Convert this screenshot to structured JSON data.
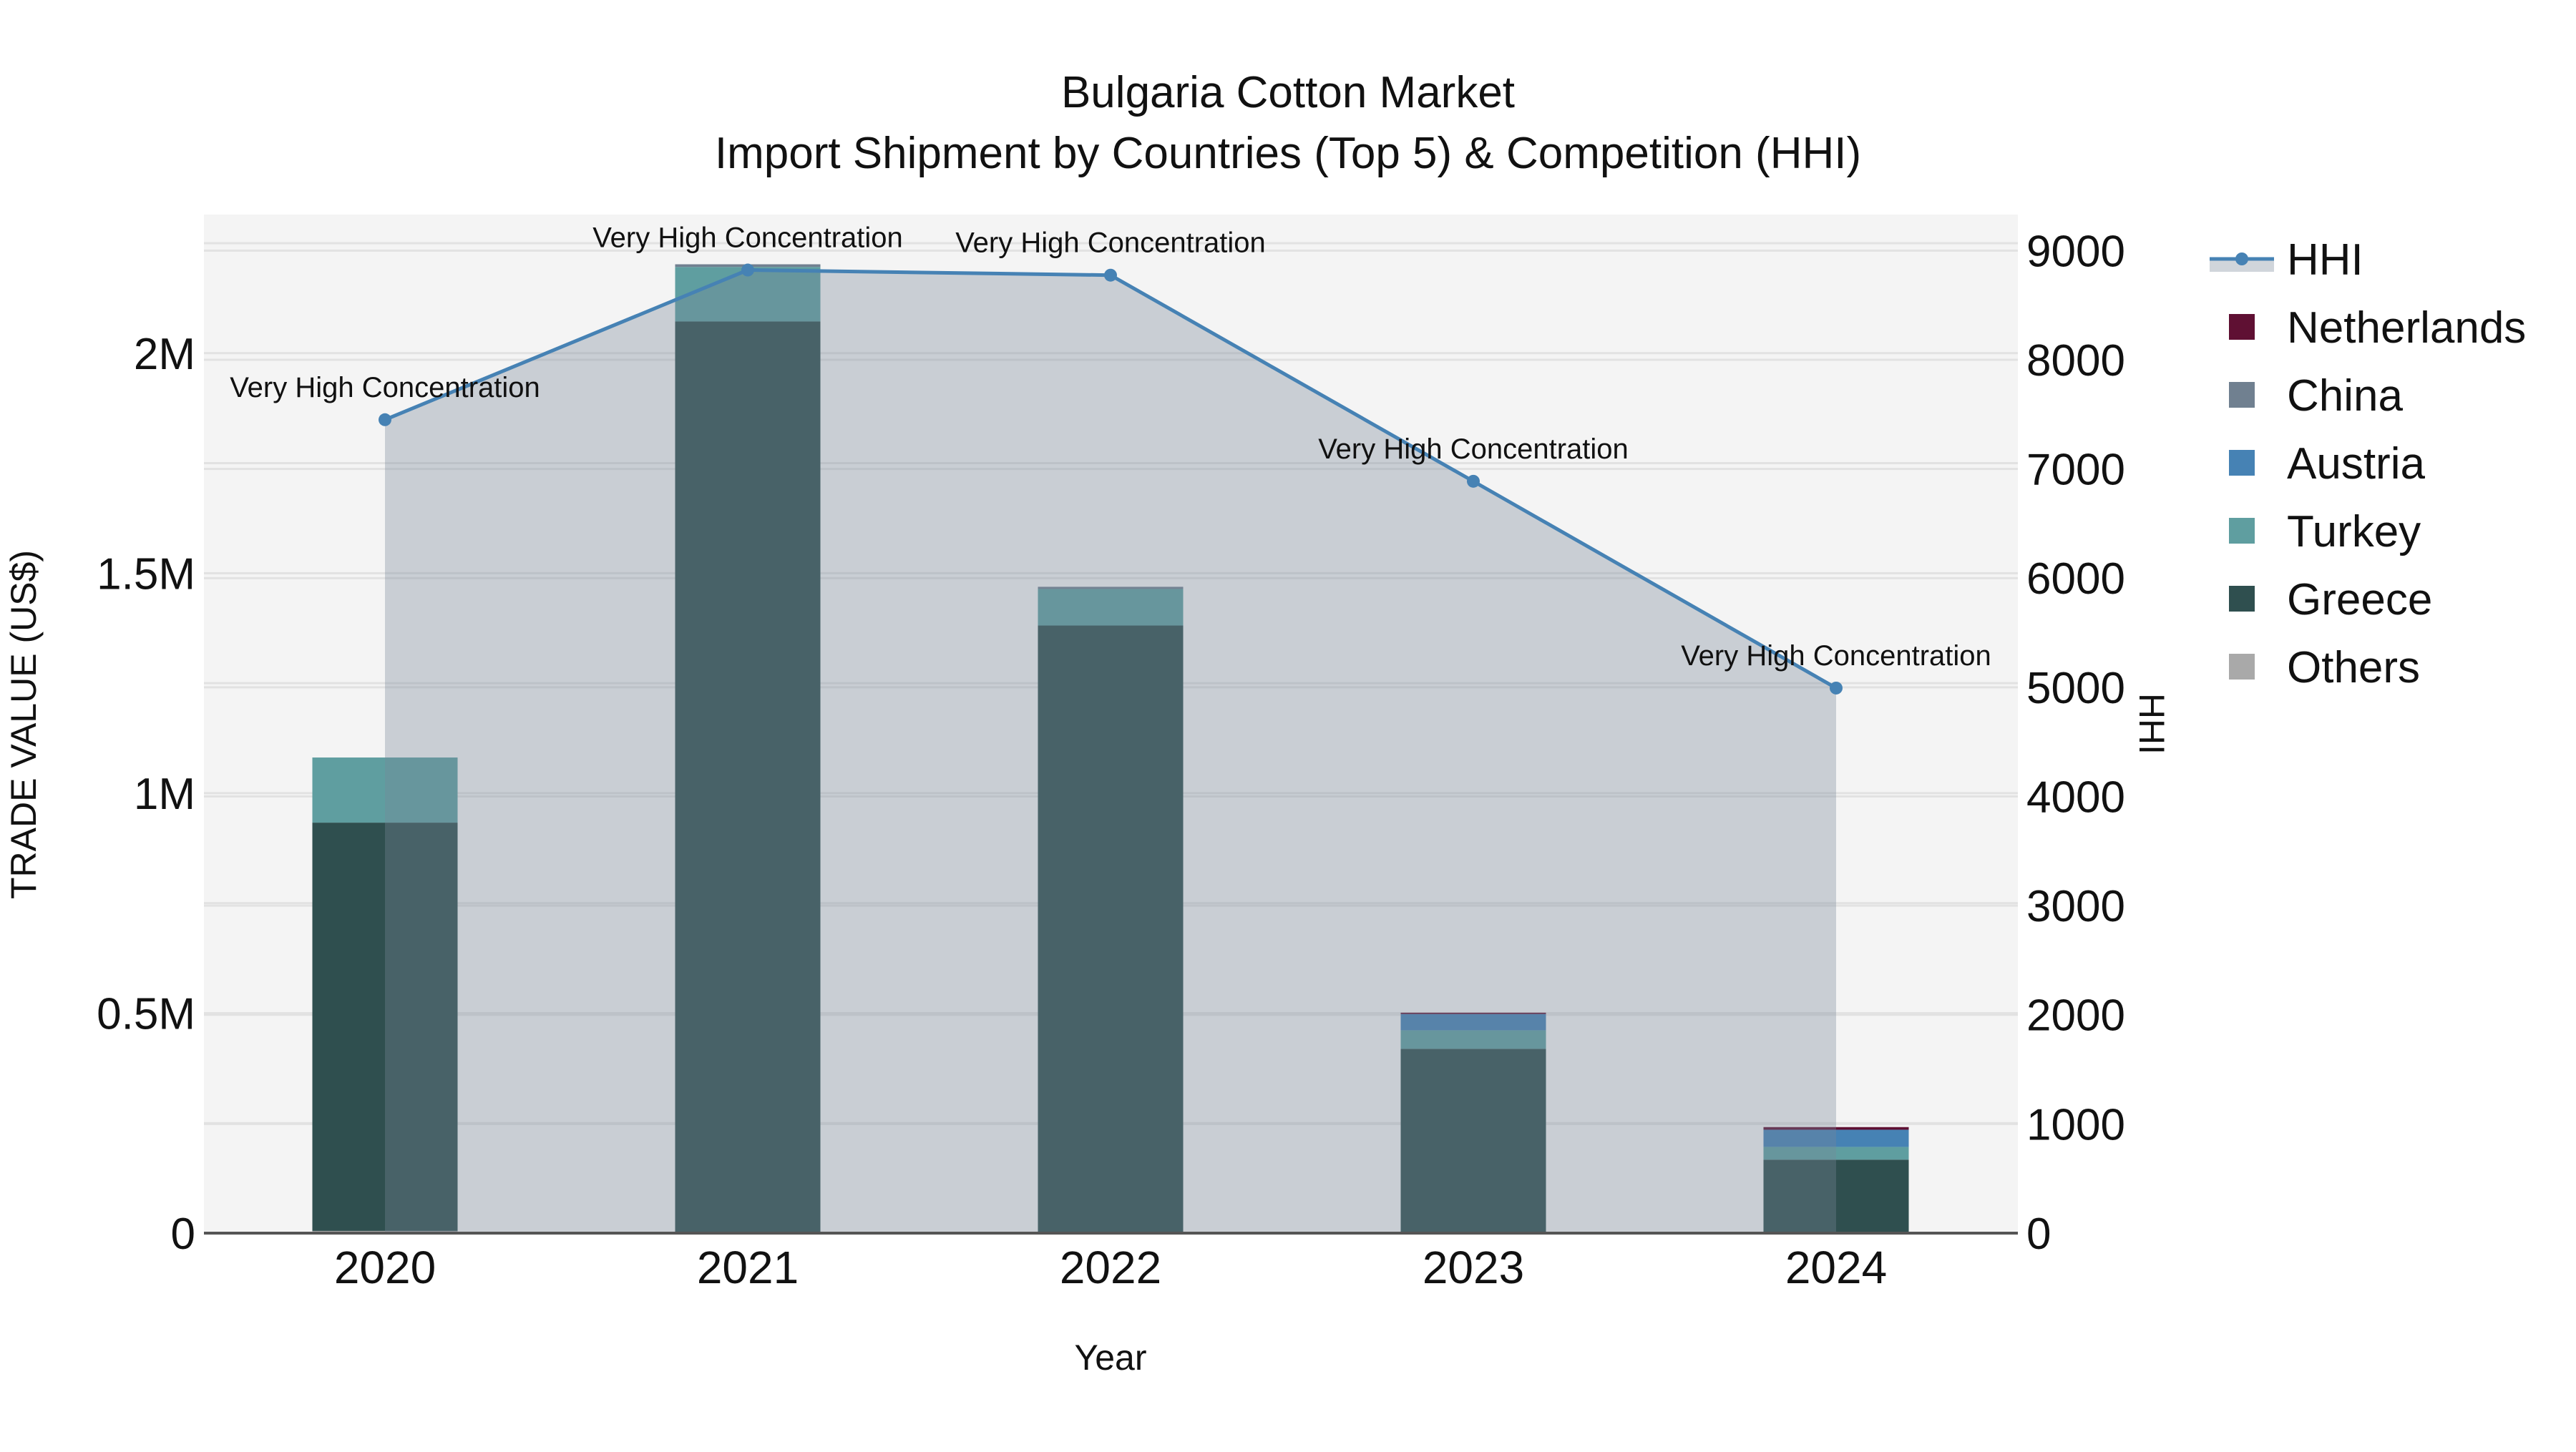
{
  "chart_data": {
    "type": "bar",
    "title": "Bulgaria Cotton Market",
    "subtitle": "Import Shipment by Countries (Top 5) & Competition (HHI)",
    "xlabel": "Year",
    "ylabel": "TRADE VALUE (US$)",
    "y2label": "HHI",
    "categories": [
      "2020",
      "2021",
      "2022",
      "2023",
      "2024"
    ],
    "barmode": "stack",
    "ylim": [
      0,
      2315000
    ],
    "y_ticks": [
      0,
      500000,
      1000000,
      1500000,
      2000000
    ],
    "y_tick_labels": [
      "0",
      "0.5M",
      "1M",
      "1.5M",
      "2M"
    ],
    "y2lim": [
      0,
      9330
    ],
    "y2_ticks": [
      0,
      1000,
      2000,
      3000,
      4000,
      5000,
      6000,
      7000,
      8000,
      9000
    ],
    "y2_tick_labels": [
      "0",
      "1000",
      "2000",
      "3000",
      "4000",
      "5000",
      "6000",
      "7000",
      "8000",
      "9000"
    ],
    "grid": true,
    "legend_position": "right",
    "series": [
      {
        "name": "Others",
        "type": "bar",
        "color": "#a9a9a9",
        "values": [
          5000,
          2000,
          2000,
          1000,
          1000
        ]
      },
      {
        "name": "Greece",
        "type": "bar",
        "color": "#2f4f4f",
        "values": [
          928000,
          2070000,
          1379000,
          418000,
          166000
        ]
      },
      {
        "name": "Turkey",
        "type": "bar",
        "color": "#5f9ea0",
        "values": [
          148000,
          124000,
          83000,
          42000,
          29000
        ]
      },
      {
        "name": "Austria",
        "type": "bar",
        "color": "#4682b4",
        "values": [
          0,
          0,
          0,
          37000,
          39000
        ]
      },
      {
        "name": "China",
        "type": "bar",
        "color": "#708090",
        "values": [
          0,
          6000,
          5000,
          0,
          0
        ]
      },
      {
        "name": "Netherlands",
        "type": "bar",
        "color": "#5f1033",
        "values": [
          0,
          0,
          0,
          3000,
          6000
        ]
      },
      {
        "name": "HHI",
        "type": "line+area",
        "axis": "y2",
        "color": "#4682b4",
        "fill": "rgba(119,136,153,0.35)",
        "values": [
          7451,
          8822,
          8775,
          6887,
          4993
        ],
        "annotations": [
          "Very High Concentration",
          "Very High Concentration",
          "Very High Concentration",
          "Very High Concentration",
          "Very High Concentration"
        ]
      }
    ]
  },
  "legend": {
    "items": [
      {
        "label": "HHI",
        "kind": "line",
        "color": "#4682b4"
      },
      {
        "label": "Netherlands",
        "kind": "box",
        "color": "#5f1033"
      },
      {
        "label": "China",
        "kind": "box",
        "color": "#708090"
      },
      {
        "label": "Austria",
        "kind": "box",
        "color": "#4682b4"
      },
      {
        "label": "Turkey",
        "kind": "box",
        "color": "#5f9ea0"
      },
      {
        "label": "Greece",
        "kind": "box",
        "color": "#2f4f4f"
      },
      {
        "label": "Others",
        "kind": "box",
        "color": "#a9a9a9"
      }
    ]
  },
  "colors": {
    "plot_background": "#f4f4f4",
    "gridline": "#e2e2e2",
    "axis_line": "#555555",
    "hhi_fill": "rgba(119,136,153,0.35)",
    "hhi_line": "#4682b4"
  }
}
